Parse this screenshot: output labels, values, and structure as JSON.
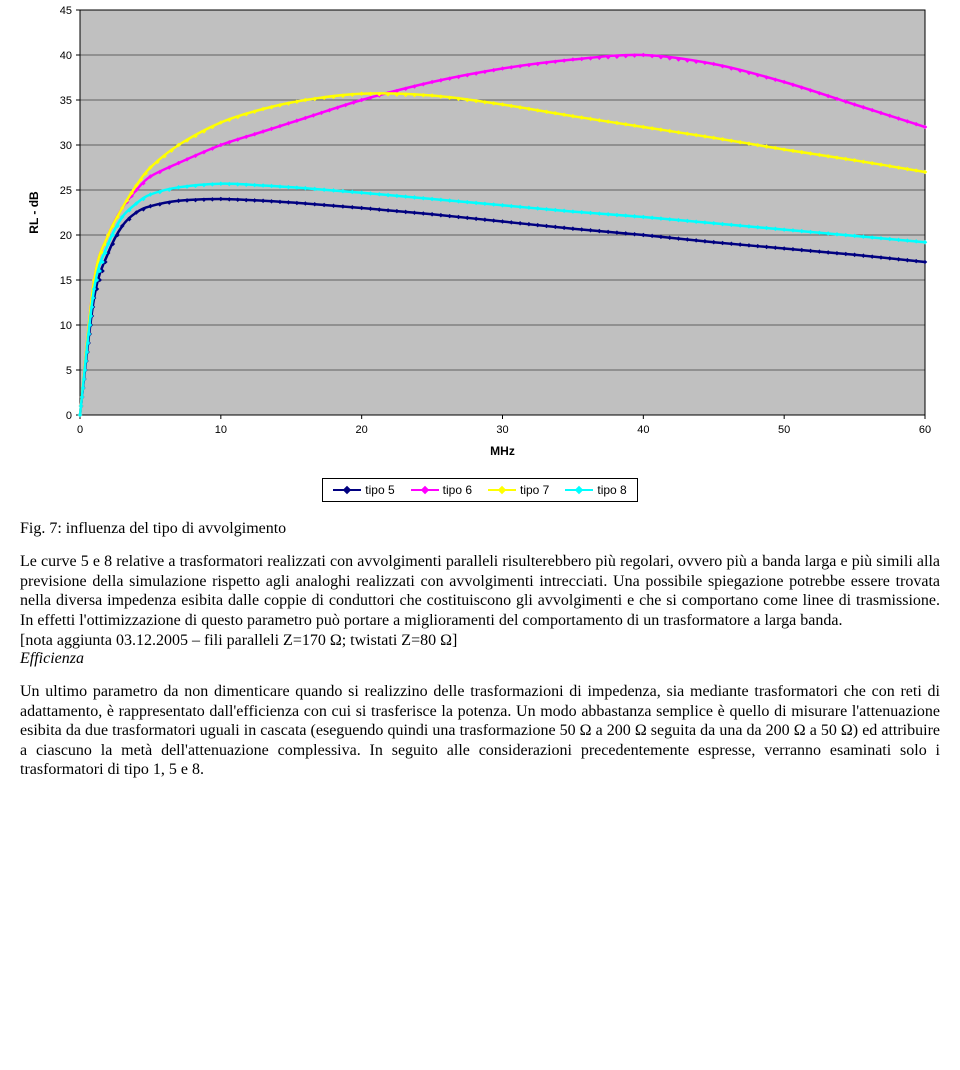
{
  "chart": {
    "type": "line",
    "x_label": "MHz",
    "y_label": "RL - dB",
    "x_label_fontsize": 12,
    "y_label_fontsize": 12,
    "axis_font_family": "Arial",
    "axis_fontsize": 11,
    "axis_font_weight": "bold",
    "xlim": [
      0,
      60
    ],
    "ylim": [
      0,
      45
    ],
    "xtick_step": 10,
    "ytick_step": 5,
    "plot_background": "#c0c0c0",
    "page_background": "#ffffff",
    "grid_color": "#000000",
    "axis_color": "#000000",
    "line_width": 2.5,
    "marker_size": 3.2,
    "marker_style": "diamond",
    "series": [
      {
        "name": "tipo 5",
        "color": "#000080",
        "x": [
          0,
          1,
          2,
          3,
          4,
          5,
          7,
          10,
          13,
          16,
          20,
          25,
          30,
          35,
          40,
          45,
          50,
          55,
          60
        ],
        "y": [
          0,
          13,
          18,
          21,
          22.5,
          23.2,
          23.8,
          24.0,
          23.8,
          23.5,
          23.0,
          22.3,
          21.5,
          20.7,
          20.0,
          19.2,
          18.5,
          17.8,
          17.0
        ]
      },
      {
        "name": "tipo 6",
        "color": "#ff00ff",
        "x": [
          0,
          1,
          2,
          3,
          4,
          5,
          7,
          10,
          13,
          16,
          20,
          25,
          30,
          35,
          40,
          45,
          50,
          55,
          60
        ],
        "y": [
          0,
          15,
          20,
          23,
          25,
          26.5,
          28,
          30,
          31.5,
          33,
          35,
          37,
          38.5,
          39.5,
          40.0,
          39.0,
          37.0,
          34.5,
          32.0
        ]
      },
      {
        "name": "tipo 7",
        "color": "#ffff00",
        "x": [
          0,
          1,
          2,
          3,
          4,
          5,
          7,
          10,
          13,
          16,
          20,
          25,
          30,
          35,
          40,
          45,
          50,
          55,
          60
        ],
        "y": [
          0,
          15,
          20,
          23,
          25.5,
          27.5,
          30,
          32.5,
          34,
          35,
          35.7,
          35.5,
          34.5,
          33.2,
          32.0,
          30.8,
          29.5,
          28.3,
          27.0
        ]
      },
      {
        "name": "tipo 8",
        "color": "#00ffff",
        "x": [
          0,
          1,
          2,
          3,
          4,
          5,
          7,
          10,
          13,
          16,
          20,
          25,
          30,
          35,
          40,
          45,
          50,
          55,
          60
        ],
        "y": [
          0,
          14,
          19,
          22,
          23.5,
          24.5,
          25.3,
          25.7,
          25.5,
          25.2,
          24.7,
          24.0,
          23.3,
          22.6,
          22.0,
          21.3,
          20.6,
          19.9,
          19.2
        ]
      }
    ]
  },
  "legend": {
    "items": [
      {
        "label": "tipo 5",
        "color": "#000080"
      },
      {
        "label": "tipo 6",
        "color": "#ff00ff"
      },
      {
        "label": "tipo 7",
        "color": "#ffff00"
      },
      {
        "label": "tipo 8",
        "color": "#00ffff"
      }
    ]
  },
  "text": {
    "caption": "Fig. 7: influenza del tipo di avvolgimento",
    "p1": "Le curve 5 e 8 relative a trasformatori realizzati con avvolgimenti paralleli risulterebbero più regolari, ovvero più a banda larga e più simili alla previsione della simulazione rispetto agli analoghi realizzati con avvolgimenti intrecciati. Una possibile spiegazione potrebbe essere trovata nella diversa impedenza esibita dalle coppie di conduttori che costituiscono gli avvolgimenti e che si comportano come linee di trasmissione. In effetti l'ottimizzazione di questo parametro può portare a miglioramenti del comportamento di un trasformatore a larga banda.",
    "note": "[nota aggiunta 03.12.2005 – fili paralleli Z=170 Ω; twistati Z=80 Ω]",
    "subhead": "Efficienza",
    "p2": "Un ultimo parametro da non dimenticare quando si realizzino delle trasformazioni di impedenza, sia mediante trasformatori che con reti di adattamento, è rappresentato dall'efficienza con cui si trasferisce la potenza. Un modo abbastanza semplice è quello di misurare l'attenuazione esibita da due trasformatori uguali in cascata (eseguendo quindi una trasformazione 50 Ω a 200 Ω seguita da una da 200 Ω a 50 Ω) ed attribuire a ciascuno la metà dell'attenuazione complessiva. In seguito alle considerazioni precedentemente espresse, verranno esaminati solo i trasformatori di tipo 1, 5 e 8."
  }
}
